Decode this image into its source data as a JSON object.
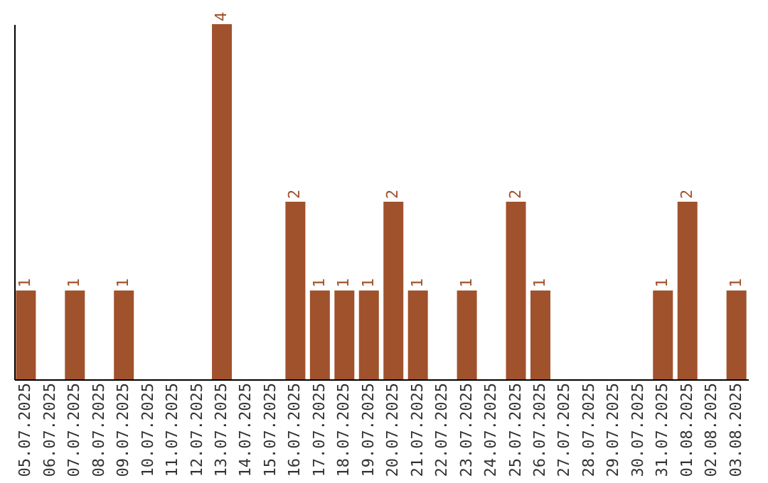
{
  "chart_data": {
    "type": "bar",
    "categories": [
      "05.07.2025",
      "06.07.2025",
      "07.07.2025",
      "08.07.2025",
      "09.07.2025",
      "10.07.2025",
      "11.07.2025",
      "12.07.2025",
      "13.07.2025",
      "14.07.2025",
      "15.07.2025",
      "16.07.2025",
      "17.07.2025",
      "18.07.2025",
      "19.07.2025",
      "20.07.2025",
      "21.07.2025",
      "22.07.2025",
      "23.07.2025",
      "24.07.2025",
      "25.07.2025",
      "26.07.2025",
      "27.07.2025",
      "28.07.2025",
      "29.07.2025",
      "30.07.2025",
      "31.07.2025",
      "01.08.2025",
      "02.08.2025",
      "03.08.2025"
    ],
    "values": [
      1,
      0,
      1,
      0,
      1,
      0,
      0,
      0,
      4,
      0,
      0,
      2,
      1,
      1,
      1,
      2,
      1,
      0,
      1,
      0,
      2,
      1,
      0,
      0,
      0,
      0,
      1,
      2,
      0,
      1
    ],
    "value_labels": [
      "1",
      null,
      "1",
      null,
      "1",
      null,
      null,
      null,
      "4",
      null,
      null,
      "2",
      "1",
      "1",
      "1",
      "2",
      "1",
      null,
      "1",
      null,
      "2",
      "1",
      null,
      null,
      null,
      null,
      "1",
      "2",
      null,
      "1"
    ],
    "color": "#a0522d",
    "grid": false,
    "tick_labels": "x"
  }
}
